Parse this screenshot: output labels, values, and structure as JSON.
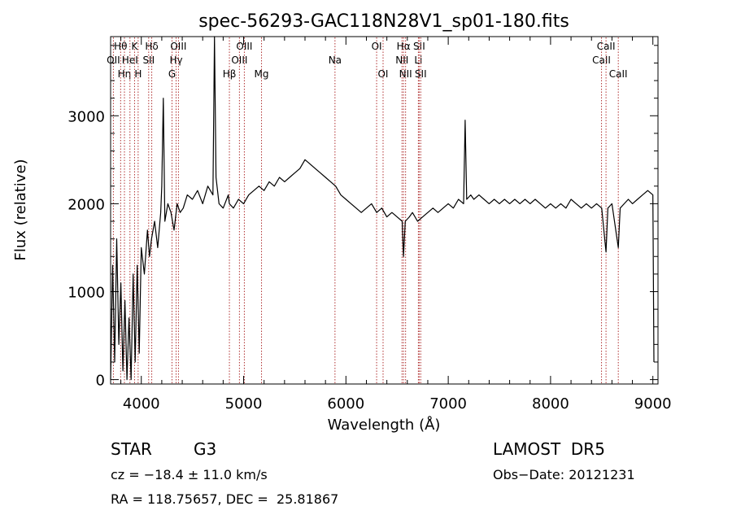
{
  "chart_data": {
    "type": "line",
    "title": "spec-56293-GAC118N28V1_sp01-180.fits",
    "xlabel": "Wavelength (Å)",
    "ylabel": "Flux (relative)",
    "xlim": [
      3700,
      9050
    ],
    "ylim": [
      -50,
      3900
    ],
    "x_ticks": [
      4000,
      5000,
      6000,
      7000,
      8000,
      9000
    ],
    "y_ticks": [
      0,
      1000,
      2000,
      3000
    ],
    "grid": false,
    "line_color": "#000000",
    "marker_line_color": "#b03030",
    "series": [
      {
        "x": [
          3700,
          3720,
          3740,
          3760,
          3780,
          3800,
          3820,
          3840,
          3860,
          3880,
          3900,
          3920,
          3940,
          3960,
          3980,
          4000,
          4030,
          4060,
          4080,
          4100,
          4130,
          4160,
          4190,
          4200,
          4215,
          4230,
          4260,
          4290,
          4320,
          4350,
          4380,
          4410,
          4450,
          4500,
          4550,
          4600,
          4650,
          4700,
          4715,
          4730,
          4760,
          4800,
          4850,
          4861,
          4900,
          4950,
          5000,
          5050,
          5100,
          5150,
          5200,
          5250,
          5300,
          5350,
          5400,
          5450,
          5500,
          5550,
          5600,
          5650,
          5700,
          5750,
          5800,
          5850,
          5900,
          5950,
          6000,
          6050,
          6100,
          6150,
          6200,
          6250,
          6300,
          6350,
          6400,
          6450,
          6500,
          6550,
          6563,
          6580,
          6620,
          6650,
          6700,
          6750,
          6800,
          6850,
          6900,
          6950,
          7000,
          7050,
          7100,
          7150,
          7165,
          7180,
          7220,
          7250,
          7300,
          7350,
          7400,
          7450,
          7500,
          7550,
          7600,
          7650,
          7700,
          7750,
          7800,
          7850,
          7900,
          7950,
          8000,
          8050,
          8100,
          8150,
          8200,
          8250,
          8300,
          8350,
          8400,
          8450,
          8500,
          8542,
          8560,
          8600,
          8662,
          8680,
          8720,
          8760,
          8800,
          8850,
          8900,
          8950,
          9000,
          9010
        ],
        "y": [
          0,
          1300,
          200,
          1600,
          400,
          1100,
          100,
          900,
          0,
          700,
          0,
          1200,
          200,
          1300,
          300,
          1500,
          1200,
          1700,
          1400,
          1600,
          1800,
          1500,
          1900,
          2200,
          3200,
          1800,
          2000,
          1900,
          1700,
          2000,
          1900,
          1950,
          2100,
          2050,
          2150,
          2000,
          2200,
          2100,
          3900,
          2300,
          2000,
          1950,
          2100,
          2000,
          1950,
          2050,
          2000,
          2100,
          2150,
          2200,
          2150,
          2250,
          2200,
          2300,
          2250,
          2300,
          2350,
          2400,
          2500,
          2450,
          2400,
          2350,
          2300,
          2250,
          2200,
          2100,
          2050,
          2000,
          1950,
          1900,
          1950,
          2000,
          1900,
          1950,
          1850,
          1900,
          1850,
          1800,
          1400,
          1800,
          1850,
          1900,
          1800,
          1850,
          1900,
          1950,
          1900,
          1950,
          2000,
          1950,
          2050,
          2000,
          2950,
          2050,
          2100,
          2050,
          2100,
          2050,
          2000,
          2050,
          2000,
          2050,
          2000,
          2050,
          2000,
          2050,
          2000,
          2050,
          2000,
          1950,
          2000,
          1950,
          2000,
          1950,
          2050,
          2000,
          1950,
          2000,
          1950,
          2000,
          1950,
          1450,
          1950,
          2000,
          1500,
          1950,
          2000,
          2050,
          2000,
          2050,
          2100,
          2150,
          2100,
          200
        ]
      }
    ],
    "line_markers": [
      {
        "x": 3727,
        "label": "OII",
        "row": 2
      },
      {
        "x": 3798,
        "label": "Hθ",
        "row": 1
      },
      {
        "x": 3835,
        "label": "Hη",
        "row": 3
      },
      {
        "x": 3889,
        "label": "HeI",
        "row": 2
      },
      {
        "x": 3934,
        "label": "K",
        "row": 1
      },
      {
        "x": 3969,
        "label": "H",
        "row": 3
      },
      {
        "x": 4072,
        "label": "SII",
        "row": 2
      },
      {
        "x": 4102,
        "label": "Hδ",
        "row": 1
      },
      {
        "x": 4300,
        "label": "G",
        "row": 3
      },
      {
        "x": 4340,
        "label": "Hγ",
        "row": 2
      },
      {
        "x": 4363,
        "label": "OIII",
        "row": 1
      },
      {
        "x": 4861,
        "label": "Hβ",
        "row": 3
      },
      {
        "x": 4959,
        "label": "OIII",
        "row": 2
      },
      {
        "x": 5007,
        "label": "OIII",
        "row": 1
      },
      {
        "x": 5175,
        "label": "Mg",
        "row": 3
      },
      {
        "x": 5893,
        "label": "Na",
        "row": 2
      },
      {
        "x": 6300,
        "label": "OI",
        "row": 1
      },
      {
        "x": 6363,
        "label": "OI",
        "row": 3
      },
      {
        "x": 6548,
        "label": "NII",
        "row": 2
      },
      {
        "x": 6563,
        "label": "Hα",
        "row": 1
      },
      {
        "x": 6583,
        "label": "NII",
        "row": 3
      },
      {
        "x": 6708,
        "label": "Li",
        "row": 2
      },
      {
        "x": 6716,
        "label": "SII",
        "row": 1
      },
      {
        "x": 6731,
        "label": "SII",
        "row": 3
      },
      {
        "x": 8498,
        "label": "CaII",
        "row": 2
      },
      {
        "x": 8542,
        "label": "CaII",
        "row": 1
      },
      {
        "x": 8662,
        "label": "CaII",
        "row": 3
      }
    ]
  },
  "info": {
    "object_class": "STAR",
    "subclass": "G3",
    "survey": "LAMOST  DR5",
    "cz": "cz = −18.4 ± 11.0 km/s",
    "obs_date": "Obs−Date: 20121231",
    "coords": "RA = 118.75657, DEC =  25.81867"
  }
}
